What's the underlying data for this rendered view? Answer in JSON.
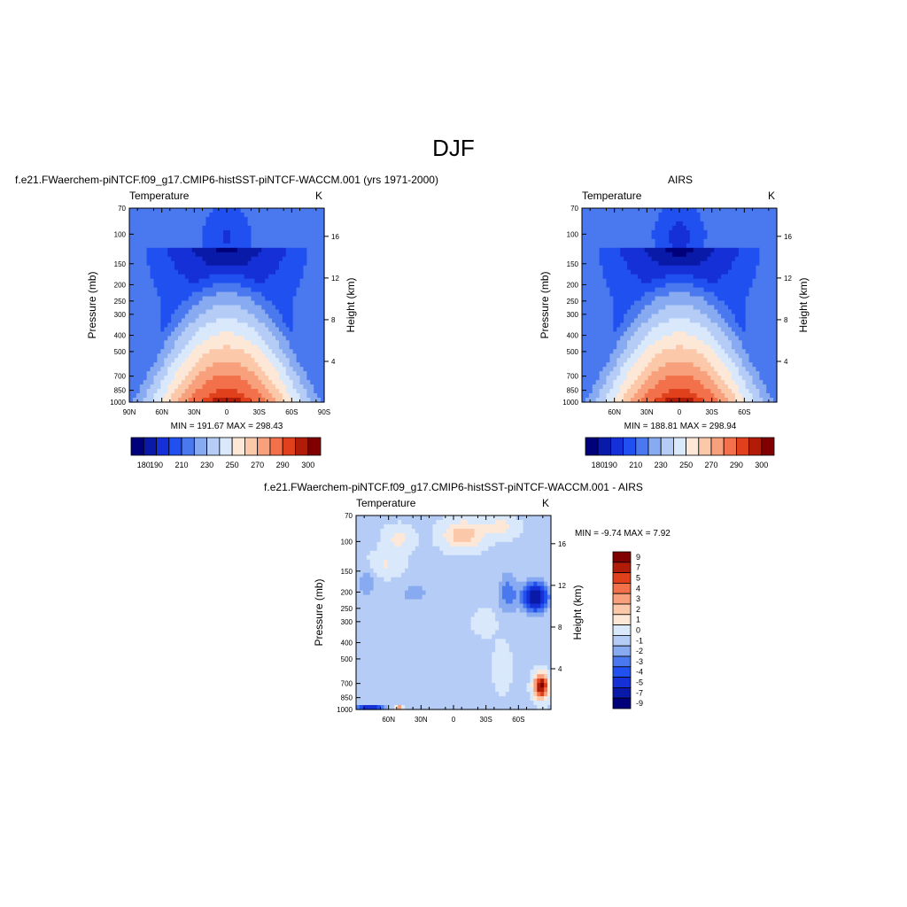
{
  "page": {
    "title": "DJF"
  },
  "chart_data": [
    {
      "type": "heatmap",
      "id": "model",
      "title": "f.e21.FWaerchem-piNTCF.f09_g17.CMIP6-histSST-piNTCF-WACCM.001 (yrs 1971-2000)",
      "left_label": "Temperature",
      "right_label": "K",
      "ylabel": "Pressure (mb)",
      "ylabel_right": "Height (km)",
      "x_ticks": [
        "90N",
        "60N",
        "30N",
        "0",
        "30S",
        "60S",
        "90S"
      ],
      "y_ticks": [
        "70",
        "100",
        "150",
        "200",
        "250",
        "300",
        "400",
        "500",
        "700",
        "850",
        "1000"
      ],
      "height_ticks": [
        "16",
        "12",
        "8",
        "4"
      ],
      "minmax_text": "MIN = 191.67  MAX = 298.43",
      "min": 191.67,
      "max": 298.43,
      "colorbar_labels": [
        "180",
        "190",
        "210",
        "230",
        "250",
        "270",
        "290",
        "300"
      ]
    },
    {
      "type": "heatmap",
      "id": "obs",
      "title": "AIRS",
      "left_label": "Temperature",
      "right_label": "K",
      "ylabel": "Pressure (mb)",
      "ylabel_right": "Height (km)",
      "x_ticks": [
        "60N",
        "30N",
        "0",
        "30S",
        "60S"
      ],
      "y_ticks": [
        "70",
        "100",
        "150",
        "200",
        "250",
        "300",
        "400",
        "500",
        "700",
        "850",
        "1000"
      ],
      "height_ticks": [
        "16",
        "12",
        "8",
        "4"
      ],
      "minmax_text": "MIN = 188.81  MAX = 298.94",
      "min": 188.81,
      "max": 298.94,
      "colorbar_labels": [
        "180",
        "190",
        "210",
        "230",
        "250",
        "270",
        "290",
        "300"
      ]
    },
    {
      "type": "heatmap",
      "id": "diff",
      "title": "f.e21.FWaerchem-piNTCF.f09_g17.CMIP6-histSST-piNTCF-WACCM.001 - AIRS",
      "left_label": "Temperature",
      "right_label": "K",
      "ylabel": "Pressure (mb)",
      "ylabel_right": "Height (km)",
      "x_ticks": [
        "60N",
        "30N",
        "0",
        "30S",
        "60S"
      ],
      "y_ticks": [
        "70",
        "100",
        "150",
        "200",
        "250",
        "300",
        "400",
        "500",
        "700",
        "850",
        "1000"
      ],
      "height_ticks": [
        "16",
        "12",
        "8",
        "4"
      ],
      "minmax_text": "MIN =  -9.74  MAX =   7.92",
      "min": -9.74,
      "max": 7.92,
      "colorbar_labels": [
        "9",
        "7",
        "5",
        "4",
        "3",
        "2",
        "1",
        "0",
        "-1",
        "-2",
        "-3",
        "-4",
        "-5",
        "-7",
        "-9"
      ]
    }
  ],
  "colors": {
    "abs_scale": [
      "#00007a",
      "#0a1aa8",
      "#1530d6",
      "#2050f0",
      "#4a78ee",
      "#88aaf0",
      "#b4ccf6",
      "#d9e8fb",
      "#fde8d8",
      "#fbc8aa",
      "#f8a07c",
      "#f2704a",
      "#e0401c",
      "#b01c08",
      "#800000"
    ],
    "diff_scale": [
      "#00007a",
      "#0a1aa8",
      "#1530d6",
      "#2050f0",
      "#4a78ee",
      "#88aaf0",
      "#b4ccf6",
      "#d9e8fb",
      "#fde8d8",
      "#fbc8aa",
      "#f8a07c",
      "#f2704a",
      "#e0401c",
      "#b01c08",
      "#800000"
    ]
  }
}
